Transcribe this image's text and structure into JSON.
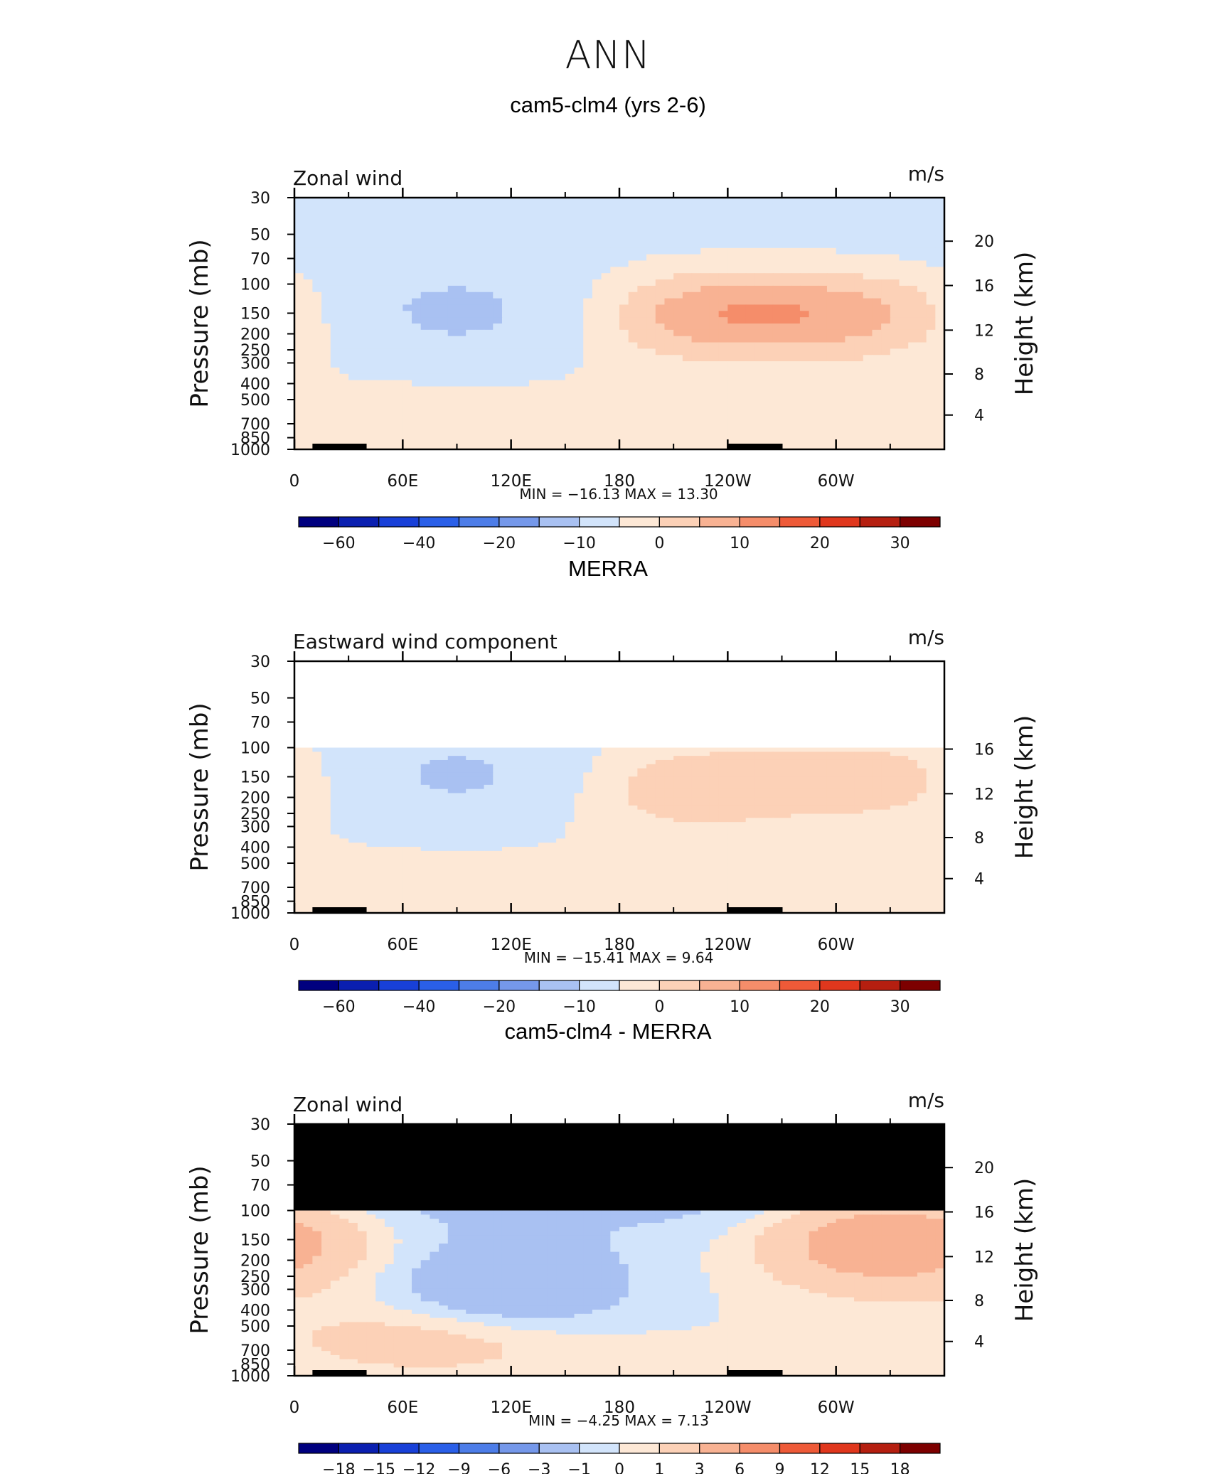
{
  "page": {
    "title": "ANN"
  },
  "colors": {
    "model_levels": [
      "#00007f",
      "#0a1fb0",
      "#1840d8",
      "#2a5fe8",
      "#4d7de8",
      "#7598ea",
      "#a9c1f2",
      "#d2e4fb",
      "#fde8d6",
      "#fcd1b7",
      "#f8b293",
      "#f58d6a",
      "#ee5a38",
      "#e0371d",
      "#b51f10",
      "#7d0000"
    ],
    "diff_levels": [
      "#00007f",
      "#0a1fb0",
      "#1840d8",
      "#2a5fe8",
      "#4d7de8",
      "#7598ea",
      "#a9c1f2",
      "#d2e4fb",
      "#fde8d6",
      "#fcd1b7",
      "#f8b293",
      "#f58d6a",
      "#ee5a38",
      "#e0371d",
      "#b51f10",
      "#7d0000"
    ],
    "terrain": "#000000",
    "masked": "#000000"
  },
  "chart_data": [
    {
      "type": "heatmap",
      "panel_title": "cam5-clm4 (yrs 2-6)",
      "variable_label": "Zonal wind",
      "units": "m/s",
      "ylabel": "Pressure (mb)",
      "y2label": "Height (km)",
      "x_ticks": [
        "0",
        "60E",
        "120E",
        "180",
        "120W",
        "60W"
      ],
      "x_range": [
        0,
        360
      ],
      "pressure_ticks": [
        "30",
        "50",
        "70",
        "100",
        "150",
        "200",
        "250",
        "300",
        "400",
        "500",
        "700",
        "850",
        "1000"
      ],
      "height_ticks": [
        "20",
        "16",
        "12",
        "8",
        "4"
      ],
      "pressure_range": [
        30,
        1000
      ],
      "stats_label": "MIN = −16.13   MAX =  13.30",
      "min": -16.13,
      "max": 13.3,
      "colorbar_labels": [
        "−60",
        "−40",
        "−20",
        "−10",
        "0",
        "10",
        "20",
        "30"
      ],
      "colorbar_boxes": 16,
      "field_top_pressure": 30,
      "features": [
        {
          "kind": "jet",
          "lon": 90,
          "p": 150,
          "value": -12
        },
        {
          "kind": "jet",
          "lon": 230,
          "p": 150,
          "value": 13
        },
        {
          "kind": "jet",
          "lon": 310,
          "p": 150,
          "value": 11
        },
        {
          "kind": "band",
          "lon": 80,
          "p": 720,
          "value": 4
        }
      ]
    },
    {
      "type": "heatmap",
      "panel_title": "MERRA",
      "variable_label": "Eastward wind component",
      "units": "m/s",
      "ylabel": "Pressure (mb)",
      "y2label": "Height (km)",
      "x_ticks": [
        "0",
        "60E",
        "120E",
        "180",
        "120W",
        "60W"
      ],
      "x_range": [
        0,
        360
      ],
      "pressure_ticks": [
        "30",
        "50",
        "70",
        "100",
        "150",
        "200",
        "250",
        "300",
        "400",
        "500",
        "700",
        "850",
        "1000"
      ],
      "height_ticks": [
        "16",
        "12",
        "8",
        "4"
      ],
      "pressure_range": [
        30,
        1000
      ],
      "stats_label": "MIN = −15.41   MAX =   9.64",
      "min": -15.41,
      "max": 9.64,
      "colorbar_labels": [
        "−60",
        "−40",
        "−20",
        "−10",
        "0",
        "10",
        "20",
        "30"
      ],
      "colorbar_boxes": 16,
      "field_top_pressure": 100,
      "features": [
        {
          "kind": "jet",
          "lon": 90,
          "p": 150,
          "value": -11
        },
        {
          "kind": "jet",
          "lon": 220,
          "p": 170,
          "value": 9
        },
        {
          "kind": "jet",
          "lon": 320,
          "p": 150,
          "value": 8
        },
        {
          "kind": "band",
          "lon": 80,
          "p": 720,
          "value": 3
        }
      ]
    },
    {
      "type": "heatmap",
      "panel_title": "cam5-clm4 - MERRA",
      "variable_label": "Zonal wind",
      "units": "m/s",
      "ylabel": "Pressure (mb)",
      "y2label": "Height (km)",
      "x_ticks": [
        "0",
        "60E",
        "120E",
        "180",
        "120W",
        "60W"
      ],
      "x_range": [
        0,
        360
      ],
      "pressure_ticks": [
        "30",
        "50",
        "70",
        "100",
        "150",
        "200",
        "250",
        "300",
        "400",
        "500",
        "700",
        "850",
        "1000"
      ],
      "height_ticks": [
        "20",
        "16",
        "12",
        "8",
        "4"
      ],
      "pressure_range": [
        30,
        1000
      ],
      "stats_label": "MIN =   −4.25   MAX =   7.13",
      "min": -4.25,
      "max": 7.13,
      "colorbar_labels": [
        "−18",
        "−15",
        "−12",
        "−9",
        "−6",
        "−3",
        "−1",
        "0",
        "1",
        "3",
        "6",
        "9",
        "12",
        "15",
        "18"
      ],
      "colorbar_boxes": 16,
      "field_top_pressure": 100,
      "features": [
        {
          "kind": "jet",
          "lon": 120,
          "p": 300,
          "value": -3
        },
        {
          "kind": "jet",
          "lon": 330,
          "p": 150,
          "value": 6
        },
        {
          "kind": "band",
          "lon": 80,
          "p": 600,
          "value": 2
        }
      ]
    }
  ]
}
